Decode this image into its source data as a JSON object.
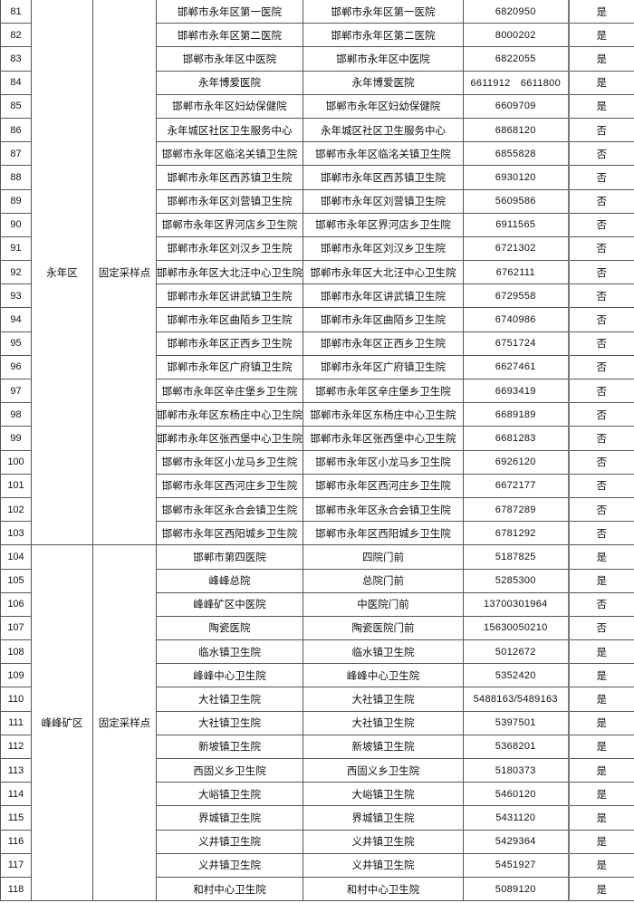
{
  "groups": [
    {
      "district": "永年区",
      "type": "固定采样点",
      "rows": [
        {
          "no": "81",
          "name": "邯郸市永年区第一医院",
          "location": "邯郸市永年区第一医院",
          "phone": "6820950",
          "flag": "是"
        },
        {
          "no": "82",
          "name": "邯郸市永年区第二医院",
          "location": "邯郸市永年区第二医院",
          "phone": "8000202",
          "flag": "是"
        },
        {
          "no": "83",
          "name": "邯郸市永年区中医院",
          "location": "邯郸市永年区中医院",
          "phone": "6822055",
          "flag": "是"
        },
        {
          "no": "84",
          "name": "永年博爱医院",
          "location": "永年博爱医院",
          "phone": "6611912　6611800",
          "flag": "是"
        },
        {
          "no": "85",
          "name": "邯郸市永年区妇幼保健院",
          "location": "邯郸市永年区妇幼保健院",
          "phone": "6609709",
          "flag": "是"
        },
        {
          "no": "86",
          "name": "永年城区社区卫生服务中心",
          "location": "永年城区社区卫生服务中心",
          "phone": "6868120",
          "flag": "否"
        },
        {
          "no": "87",
          "name": "邯郸市永年区临洺关镇卫生院",
          "location": "邯郸市永年区临洺关镇卫生院",
          "phone": "6855828",
          "flag": "否"
        },
        {
          "no": "88",
          "name": "邯郸市永年区西苏镇卫生院",
          "location": "邯郸市永年区西苏镇卫生院",
          "phone": "6930120",
          "flag": "否"
        },
        {
          "no": "89",
          "name": "邯郸市永年区刘营镇卫生院",
          "location": "邯郸市永年区刘营镇卫生院",
          "phone": "5609586",
          "flag": "否"
        },
        {
          "no": "90",
          "name": "邯郸市永年区界河店乡卫生院",
          "location": "邯郸市永年区界河店乡卫生院",
          "phone": "6911565",
          "flag": "否"
        },
        {
          "no": "91",
          "name": "邯郸市永年区刘汉乡卫生院",
          "location": "邯郸市永年区刘汉乡卫生院",
          "phone": "6721302",
          "flag": "否"
        },
        {
          "no": "92",
          "name": "邯郸市永年区大北汪中心卫生院",
          "location": "邯郸市永年区大北汪中心卫生院",
          "phone": "6762111",
          "flag": "否"
        },
        {
          "no": "93",
          "name": "邯郸市永年区讲武镇卫生院",
          "location": "邯郸市永年区讲武镇卫生院",
          "phone": "6729558",
          "flag": "否"
        },
        {
          "no": "94",
          "name": "邯郸市永年区曲陌乡卫生院",
          "location": "邯郸市永年区曲陌乡卫生院",
          "phone": "6740986",
          "flag": "否"
        },
        {
          "no": "95",
          "name": "邯郸市永年区正西乡卫生院",
          "location": "邯郸市永年区正西乡卫生院",
          "phone": "6751724",
          "flag": "否"
        },
        {
          "no": "96",
          "name": "邯郸市永年区广府镇卫生院",
          "location": "邯郸市永年区广府镇卫生院",
          "phone": "6627461",
          "flag": "否"
        },
        {
          "no": "97",
          "name": "邯郸市永年区辛庄堡乡卫生院",
          "location": "邯郸市永年区辛庄堡乡卫生院",
          "phone": "6693419",
          "flag": "否"
        },
        {
          "no": "98",
          "name": "邯郸市永年区东杨庄中心卫生院",
          "location": "邯郸市永年区东杨庄中心卫生院",
          "phone": "6689189",
          "flag": "否"
        },
        {
          "no": "99",
          "name": "邯郸市永年区张西堡中心卫生院",
          "location": "邯郸市永年区张西堡中心卫生院",
          "phone": "6681283",
          "flag": "否"
        },
        {
          "no": "100",
          "name": "邯郸市永年区小龙马乡卫生院",
          "location": "邯郸市永年区小龙马乡卫生院",
          "phone": "6926120",
          "flag": "否"
        },
        {
          "no": "101",
          "name": "邯郸市永年区西河庄乡卫生院",
          "location": "邯郸市永年区西河庄乡卫生院",
          "phone": "6672177",
          "flag": "否"
        },
        {
          "no": "102",
          "name": "邯郸市永年区永合会镇卫生院",
          "location": "邯郸市永年区永合会镇卫生院",
          "phone": "6787289",
          "flag": "否"
        },
        {
          "no": "103",
          "name": "邯郸市永年区西阳城乡卫生院",
          "location": "邯郸市永年区西阳城乡卫生院",
          "phone": "6781292",
          "flag": "否"
        }
      ]
    },
    {
      "district": "峰峰矿区",
      "type": "固定采样点",
      "rows": [
        {
          "no": "104",
          "name": "邯郸市第四医院",
          "location": "四院门前",
          "phone": "5187825",
          "flag": "是"
        },
        {
          "no": "105",
          "name": "峰峰总院",
          "location": "总院门前",
          "phone": "5285300",
          "flag": "是"
        },
        {
          "no": "106",
          "name": "峰峰矿区中医院",
          "location": "中医院门前",
          "phone": "13700301964",
          "flag": "否"
        },
        {
          "no": "107",
          "name": "陶瓷医院",
          "location": "陶瓷医院门前",
          "phone": "15630050210",
          "flag": "否"
        },
        {
          "no": "108",
          "name": "临水镇卫生院",
          "location": "临水镇卫生院",
          "phone": "5012672",
          "flag": "是"
        },
        {
          "no": "109",
          "name": "峰峰中心卫生院",
          "location": "峰峰中心卫生院",
          "phone": "5352420",
          "flag": "是"
        },
        {
          "no": "110",
          "name": "大社镇卫生院",
          "location": "大社镇卫生院",
          "phone": "5488163/5489163",
          "flag": "是"
        },
        {
          "no": "111",
          "name": "大社镇卫生院",
          "location": "大社镇卫生院",
          "phone": "5397501",
          "flag": "是"
        },
        {
          "no": "112",
          "name": "新坡镇卫生院",
          "location": "新坡镇卫生院",
          "phone": "5368201",
          "flag": "是"
        },
        {
          "no": "113",
          "name": "西固义乡卫生院",
          "location": "西固义乡卫生院",
          "phone": "5180373",
          "flag": "是"
        },
        {
          "no": "114",
          "name": "大峪镇卫生院",
          "location": "大峪镇卫生院",
          "phone": "5460120",
          "flag": "是"
        },
        {
          "no": "115",
          "name": "界城镇卫生院",
          "location": "界城镇卫生院",
          "phone": "5431120",
          "flag": "是"
        },
        {
          "no": "116",
          "name": "义井镇卫生院",
          "location": "义井镇卫生院",
          "phone": "5429364",
          "flag": "是"
        },
        {
          "no": "117",
          "name": "义井镇卫生院",
          "location": "义井镇卫生院",
          "phone": "5451927",
          "flag": "是"
        },
        {
          "no": "118",
          "name": "和村中心卫生院",
          "location": "和村中心卫生院",
          "phone": "5089120",
          "flag": "是"
        }
      ]
    }
  ]
}
